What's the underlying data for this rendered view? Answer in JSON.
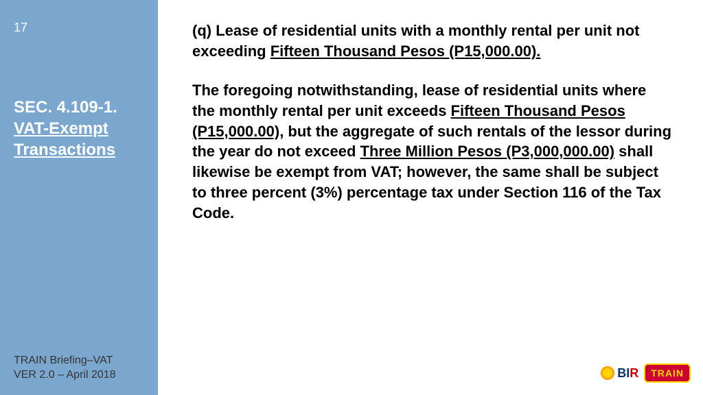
{
  "slide": {
    "number": "17",
    "section_prefix": "SEC. 4.109-1.",
    "section_underlined": "VAT-Exempt Transactions"
  },
  "content": {
    "p1_lead": "(q) Lease of residential units with a monthly rental per unit not exceeding ",
    "p1_underlined": "Fifteen Thousand Pesos (P15,000.00).",
    "p2_a": "The foregoing notwithstanding, lease of residential units where the monthly rental per unit exceeds ",
    "p2_u1": "Fifteen Thousand Pesos (P15,000.00),",
    "p2_b": " but the aggregate of such rentals of the lessor during the year do not exceed ",
    "p2_u2": "Three Million Pesos (P3,000,000.00)",
    "p2_c": " shall likewise be exempt from VAT; however, the same shall be subject to three percent (3%) percentage tax under Section 116 of the Tax Code."
  },
  "footer": {
    "line1": "TRAIN Briefing–VAT",
    "line2": "VER 2.0 – April 2018"
  },
  "logos": {
    "bir_b": "B",
    "bir_i": "I",
    "bir_r": "R",
    "train": "TRAIN"
  },
  "styling": {
    "sidebar_bg": "#7ba7ce",
    "sidebar_text": "#ffffff",
    "main_text": "#000000",
    "main_fontsize": 22,
    "section_fontsize": 24,
    "slide_width": 1024,
    "slide_height": 576,
    "train_bg": "#cc0033",
    "train_fg": "#ffd700",
    "bir_blue": "#003366",
    "bir_red": "#cc0000"
  }
}
